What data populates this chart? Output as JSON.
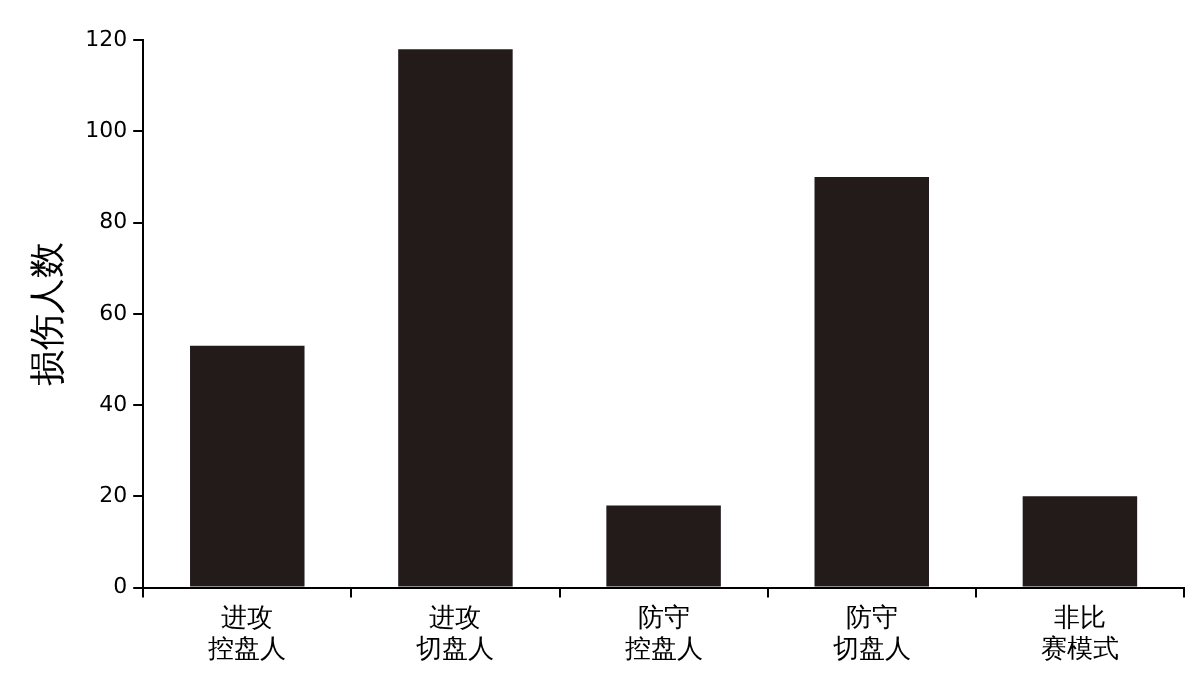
{
  "chart_data": {
    "type": "bar",
    "ylabel": "损伤人数",
    "categories": [
      "进攻控盘人",
      "进攻切盘人",
      "防守控盘人",
      "防守切盘人",
      "非比赛模式"
    ],
    "values": [
      53,
      118,
      18,
      90,
      20
    ],
    "color": "#231a1a",
    "ylim": [
      0,
      120
    ],
    "yticks": [
      0,
      20,
      40,
      60,
      80,
      100,
      120
    ],
    "grid": false,
    "legend": false
  }
}
